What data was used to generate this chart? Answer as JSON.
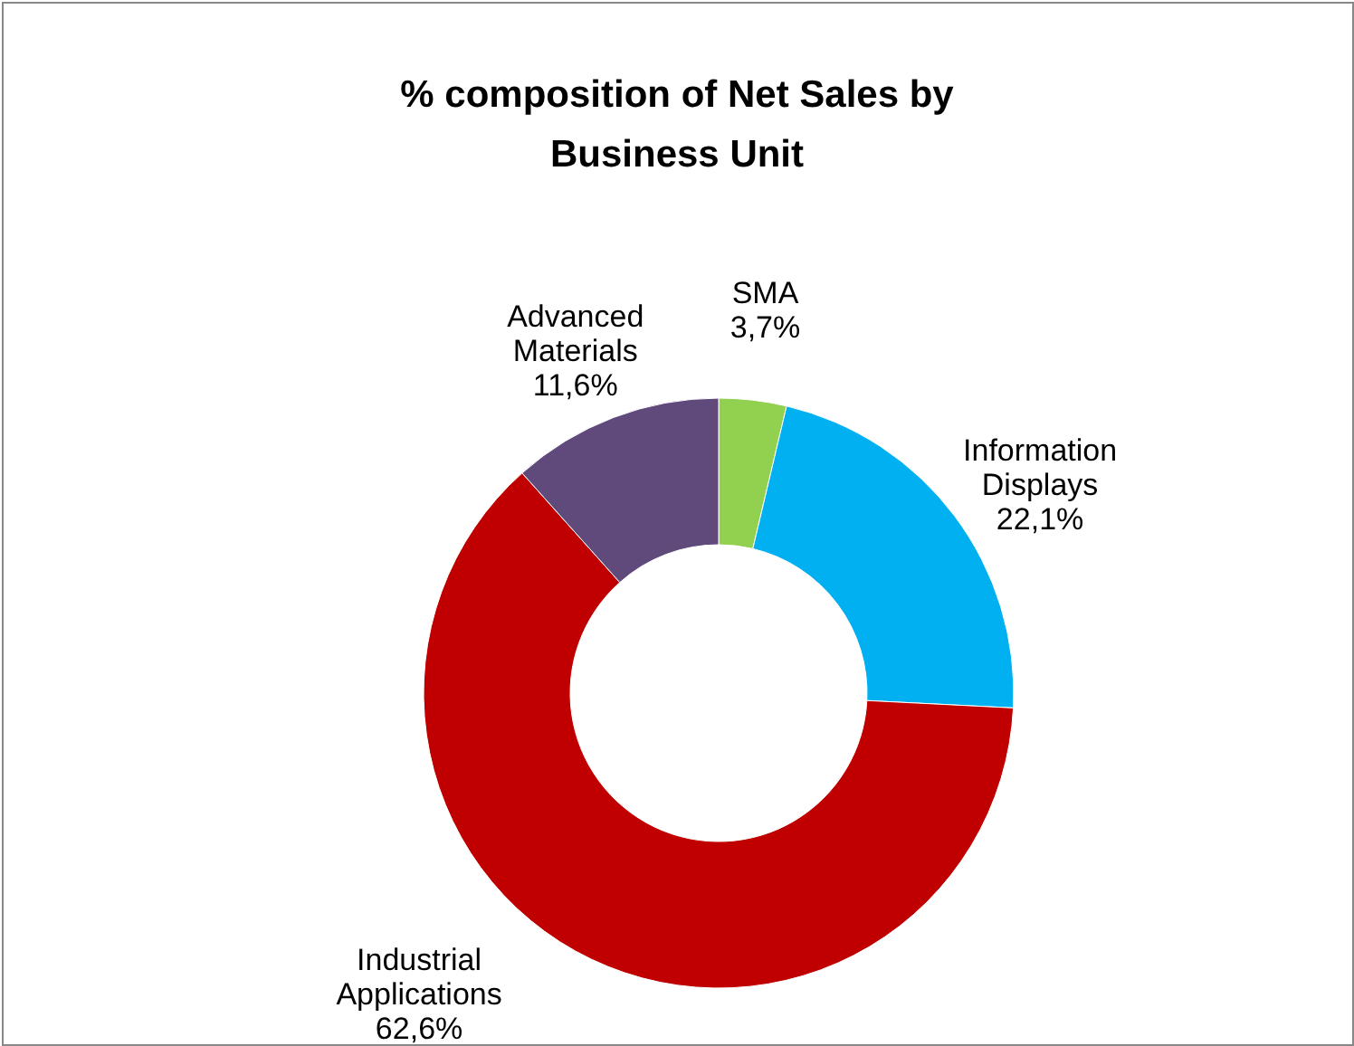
{
  "chart_data": {
    "type": "donut",
    "title": "% composition of Net Sales by Business Unit",
    "categories": [
      "SMA",
      "Information Displays",
      "Industrial Applications",
      "Advanced Materials"
    ],
    "values": [
      3.7,
      22.1,
      62.6,
      11.6
    ],
    "colors": [
      "#92d050",
      "#00b0f0",
      "#c00000",
      "#604a7b"
    ],
    "value_labels": [
      "3,7%",
      "22,1%",
      "62,6%",
      "11,6%"
    ],
    "legend": false
  }
}
